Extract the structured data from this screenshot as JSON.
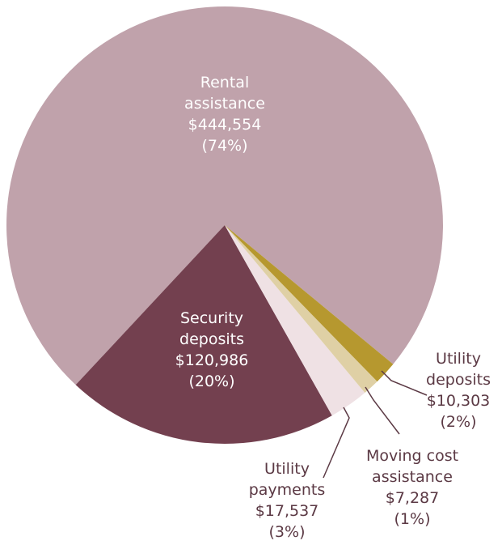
{
  "chart_data": {
    "type": "pie",
    "categories": [
      "Rental assistance",
      "Security deposits",
      "Utility payments",
      "Moving cost assistance",
      "Utility deposits"
    ],
    "values": [
      444554,
      120986,
      17537,
      7287,
      10303
    ],
    "value_labels": [
      "$444,554",
      "$120,986",
      "$17,537",
      "$7,287",
      "$10,303"
    ],
    "percent_labels": [
      "(74%)",
      "(20%)",
      "(3%)",
      "(1%)",
      "(2%)"
    ],
    "colors": [
      "#c0a2ab",
      "#73404f",
      "#efe1e4",
      "#dfd0a5",
      "#b6982f"
    ]
  }
}
